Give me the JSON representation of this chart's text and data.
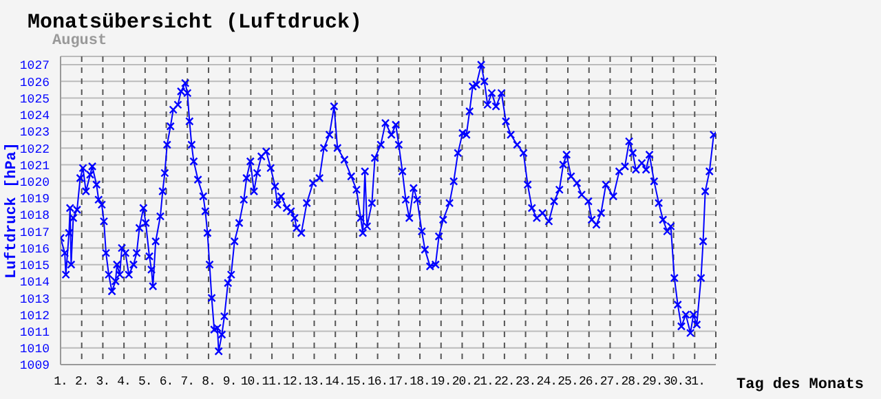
{
  "chart_data": {
    "type": "line",
    "title": "Monatsübersicht (Luftdruck)",
    "subtitle": "August",
    "xlabel": "Tag des Monats",
    "ylabel": "Luftdruck [hPa]",
    "marker": "cross",
    "grid": true,
    "xlim": [
      1,
      32
    ],
    "xticks": [
      {
        "value": 1,
        "label": "1."
      },
      {
        "value": 2,
        "label": "2."
      },
      {
        "value": 3,
        "label": "3."
      },
      {
        "value": 4,
        "label": "4."
      },
      {
        "value": 5,
        "label": "5."
      },
      {
        "value": 6,
        "label": "6."
      },
      {
        "value": 7,
        "label": "7."
      },
      {
        "value": 8,
        "label": "8."
      },
      {
        "value": 9,
        "label": "9."
      },
      {
        "value": 10,
        "label": "10."
      },
      {
        "value": 11,
        "label": "11."
      },
      {
        "value": 12,
        "label": "12."
      },
      {
        "value": 13,
        "label": "13."
      },
      {
        "value": 14,
        "label": "14."
      },
      {
        "value": 15,
        "label": "15."
      },
      {
        "value": 16,
        "label": "16."
      },
      {
        "value": 17,
        "label": "17."
      },
      {
        "value": 18,
        "label": "18."
      },
      {
        "value": 19,
        "label": "19."
      },
      {
        "value": 20,
        "label": "20."
      },
      {
        "value": 21,
        "label": "21."
      },
      {
        "value": 22,
        "label": "22."
      },
      {
        "value": 23,
        "label": "23."
      },
      {
        "value": 24,
        "label": "24."
      },
      {
        "value": 25,
        "label": "25."
      },
      {
        "value": 26,
        "label": "26."
      },
      {
        "value": 27,
        "label": "27."
      },
      {
        "value": 28,
        "label": "28."
      },
      {
        "value": 29,
        "label": "29."
      },
      {
        "value": 30,
        "label": "30."
      },
      {
        "value": 31,
        "label": "31."
      }
    ],
    "ylim": [
      1009,
      1027.5
    ],
    "yticks": [
      1009,
      1010,
      1011,
      1012,
      1013,
      1014,
      1015,
      1016,
      1017,
      1018,
      1019,
      1020,
      1021,
      1022,
      1023,
      1024,
      1025,
      1026,
      1027
    ],
    "series": [
      {
        "color": "#0000ff",
        "x": [
          1,
          1.2,
          1.25,
          1.4,
          1.45,
          1.5,
          1.6,
          1.78,
          1.93,
          2.06,
          2.2,
          2.4,
          2.5,
          2.7,
          2.8,
          2.95,
          3.05,
          3.15,
          3.28,
          3.43,
          3.6,
          3.67,
          3.8,
          3.9,
          4.07,
          4.23,
          4.45,
          4.6,
          4.73,
          4.92,
          5.03,
          5.2,
          5.3,
          5.37,
          5.5,
          5.72,
          5.83,
          5.93,
          6.04,
          6.2,
          6.33,
          6.55,
          6.7,
          6.9,
          7.0,
          7.1,
          7.2,
          7.3,
          7.5,
          7.75,
          7.85,
          7.95,
          8.05,
          8.15,
          8.27,
          8.42,
          8.48,
          8.63,
          8.75,
          8.92,
          9.07,
          9.23,
          9.45,
          9.67,
          9.8,
          9.98,
          10.15,
          10.3,
          10.5,
          10.73,
          10.94,
          11.15,
          11.26,
          11.43,
          11.7,
          11.9,
          12.07,
          12.17,
          12.39,
          12.65,
          12.94,
          13.25,
          13.46,
          13.72,
          13.94,
          14.1,
          14.43,
          14.75,
          15.0,
          15.2,
          15.3,
          15.4,
          15.5,
          15.73,
          15.87,
          16.15,
          16.37,
          16.65,
          16.86,
          17.0,
          17.17,
          17.33,
          17.5,
          17.7,
          17.87,
          18.09,
          18.24,
          18.48,
          18.74,
          18.9,
          19.1,
          19.4,
          19.6,
          19.8,
          20.02,
          20.2,
          20.35,
          20.5,
          20.67,
          20.9,
          21.05,
          21.2,
          21.4,
          21.6,
          21.86,
          22.07,
          22.3,
          22.6,
          22.9,
          23.1,
          23.3,
          23.53,
          23.8,
          24.1,
          24.35,
          24.6,
          24.78,
          24.94,
          25.15,
          25.43,
          25.65,
          25.97,
          26.13,
          26.35,
          26.57,
          26.8,
          27.15,
          27.43,
          27.7,
          27.9,
          28.07,
          28.22,
          28.5,
          28.7,
          28.86,
          29.08,
          29.3,
          29.5,
          29.7,
          29.87,
          30.04,
          30.2,
          30.37,
          30.58,
          30.8,
          30.94,
          31.1,
          31.3,
          31.4,
          31.5,
          31.7,
          31.9
        ],
        "values": [
          1016.6,
          1015.7,
          1014.4,
          1016.9,
          1018.4,
          1015.0,
          1017.8,
          1018.3,
          1020.2,
          1020.8,
          1019.4,
          1020.4,
          1020.9,
          1019.8,
          1018.9,
          1018.6,
          1017.6,
          1015.7,
          1014.4,
          1013.4,
          1014.0,
          1015.0,
          1014.4,
          1016.0,
          1015.7,
          1014.4,
          1015.0,
          1015.7,
          1017.2,
          1018.4,
          1017.5,
          1015.5,
          1014.7,
          1013.7,
          1016.4,
          1017.9,
          1019.4,
          1020.5,
          1022.2,
          1023.3,
          1024.3,
          1024.6,
          1025.4,
          1025.9,
          1025.3,
          1023.6,
          1022.2,
          1021.2,
          1020.1,
          1019.1,
          1018.2,
          1016.9,
          1015.0,
          1013.0,
          1011.1,
          1011.2,
          1009.8,
          1010.8,
          1011.9,
          1013.9,
          1014.4,
          1016.4,
          1017.5,
          1018.9,
          1020.2,
          1021.2,
          1019.4,
          1020.5,
          1021.5,
          1021.8,
          1020.8,
          1019.7,
          1018.6,
          1019.1,
          1018.4,
          1018.2,
          1017.8,
          1017.2,
          1016.9,
          1018.7,
          1019.9,
          1020.2,
          1022.0,
          1022.8,
          1024.5,
          1022.0,
          1021.3,
          1020.3,
          1019.5,
          1017.8,
          1016.9,
          1020.6,
          1017.3,
          1018.7,
          1021.4,
          1022.2,
          1023.5,
          1022.8,
          1023.4,
          1022.2,
          1020.6,
          1018.9,
          1017.8,
          1019.6,
          1018.9,
          1017.0,
          1015.9,
          1014.9,
          1015.0,
          1016.7,
          1017.7,
          1018.7,
          1020.0,
          1021.7,
          1022.9,
          1022.8,
          1024.2,
          1025.7,
          1025.8,
          1027.0,
          1026.0,
          1024.6,
          1025.3,
          1024.5,
          1025.3,
          1023.6,
          1022.8,
          1022.2,
          1021.7,
          1019.8,
          1018.4,
          1017.8,
          1018.1,
          1017.6,
          1018.8,
          1019.5,
          1021.0,
          1021.6,
          1020.3,
          1019.9,
          1019.2,
          1018.8,
          1017.7,
          1017.4,
          1018.1,
          1019.8,
          1019.1,
          1020.6,
          1020.9,
          1022.4,
          1021.7,
          1020.7,
          1021.1,
          1020.7,
          1021.6,
          1020.0,
          1018.7,
          1017.7,
          1017.0,
          1017.3,
          1014.2,
          1012.6,
          1011.3,
          1012.0,
          1010.9,
          1012.0,
          1011.4,
          1014.2,
          1016.4,
          1019.4,
          1020.6,
          1022.8
        ]
      }
    ]
  }
}
